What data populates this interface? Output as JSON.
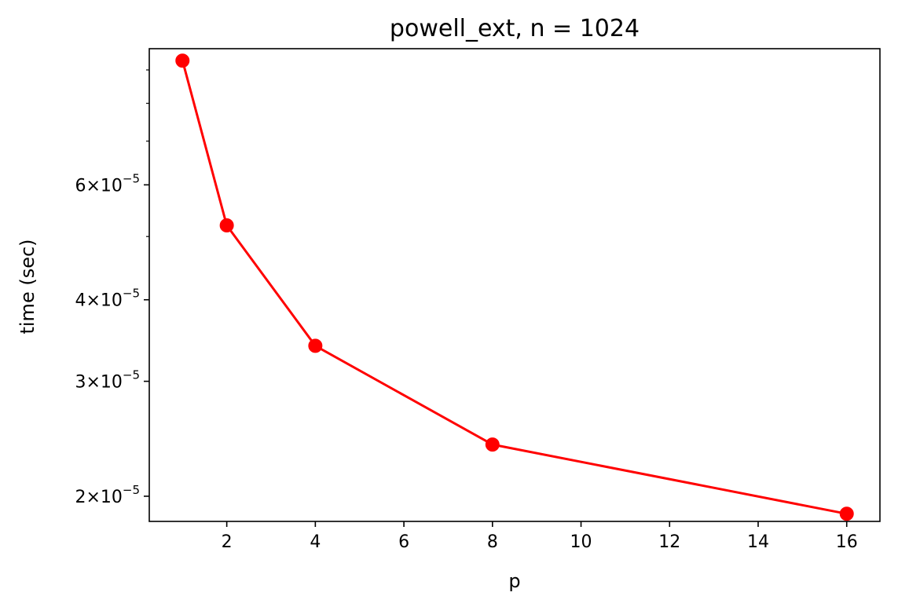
{
  "chart_data": {
    "type": "line",
    "title": "powell_ext, n = 1024",
    "xlabel": "p",
    "ylabel": "time (sec)",
    "x_scale": "linear",
    "y_scale": "log",
    "xlim": [
      0.25,
      16.75
    ],
    "ylim": [
      1.83e-05,
      9.7e-05
    ],
    "x_ticks": [
      2,
      4,
      6,
      8,
      10,
      12,
      14,
      16
    ],
    "x_tick_labels": [
      "2",
      "4",
      "6",
      "8",
      "10",
      "12",
      "14",
      "16"
    ],
    "y_ticks": [
      {
        "value": 2e-05,
        "mantissa": "2",
        "exponent": "−5"
      },
      {
        "value": 3e-05,
        "mantissa": "3",
        "exponent": "−5"
      },
      {
        "value": 4e-05,
        "mantissa": "4",
        "exponent": "−5"
      },
      {
        "value": 6e-05,
        "mantissa": "6",
        "exponent": "−5"
      }
    ],
    "y_minor_ticks": [
      5e-05,
      7e-05,
      8e-05,
      9e-05
    ],
    "grid": false,
    "legend": "none",
    "series": [
      {
        "color": "#ff0000",
        "marker": "circle",
        "x": [
          1,
          2,
          4,
          8,
          16
        ],
        "y": [
          9.3e-05,
          5.2e-05,
          3.4e-05,
          2.4e-05,
          1.88e-05
        ]
      }
    ]
  }
}
